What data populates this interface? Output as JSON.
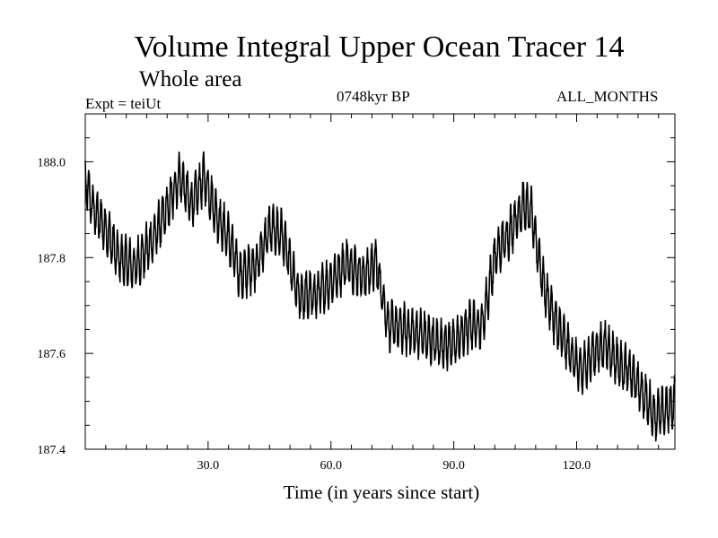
{
  "chart_data": {
    "type": "line",
    "title": "Volume Integral Upper Ocean Tracer 14",
    "subtitle": "Whole area",
    "expt_label": "Expt = teiUt",
    "period_label": "0748kyr BP",
    "months_label": "ALL_MONTHS",
    "xlabel": "Time (in years since start)",
    "ylabel": "",
    "xlim": [
      0,
      144
    ],
    "ylim": [
      187.4,
      188.1
    ],
    "x_ticks": [
      30.0,
      60.0,
      90.0,
      120.0
    ],
    "x_tick_labels": [
      "30.0",
      "60.0",
      "90.0",
      "120.0"
    ],
    "y_ticks": [
      187.4,
      187.6,
      187.8,
      188.0
    ],
    "y_tick_labels": [
      "187.4",
      "187.6",
      "187.8",
      "188.0"
    ],
    "series": [
      {
        "name": "Volume Integral Upper Ocean Tracer 14",
        "color": "#000000",
        "seasonal_amplitude": 0.045,
        "baseline_x": [
          0,
          2,
          5,
          8,
          12,
          16,
          20,
          23,
          26,
          29,
          32,
          35,
          38,
          42,
          45,
          48,
          52,
          56,
          60,
          64,
          68,
          71,
          74,
          78,
          82,
          86,
          90,
          94,
          97,
          100,
          104,
          107,
          109,
          112,
          115,
          118,
          121,
          124,
          127,
          130,
          133,
          136,
          139,
          142,
          144
        ],
        "baseline_y": [
          187.96,
          187.9,
          187.86,
          187.8,
          187.78,
          187.83,
          187.9,
          187.97,
          187.91,
          187.97,
          187.89,
          187.84,
          187.76,
          187.79,
          187.86,
          187.85,
          187.72,
          187.72,
          187.75,
          187.79,
          187.76,
          187.79,
          187.66,
          187.65,
          187.64,
          187.62,
          187.62,
          187.66,
          187.66,
          187.8,
          187.86,
          187.91,
          187.89,
          187.74,
          187.66,
          187.61,
          187.56,
          187.6,
          187.62,
          187.58,
          187.56,
          187.52,
          187.47,
          187.48,
          187.5
        ]
      }
    ]
  }
}
